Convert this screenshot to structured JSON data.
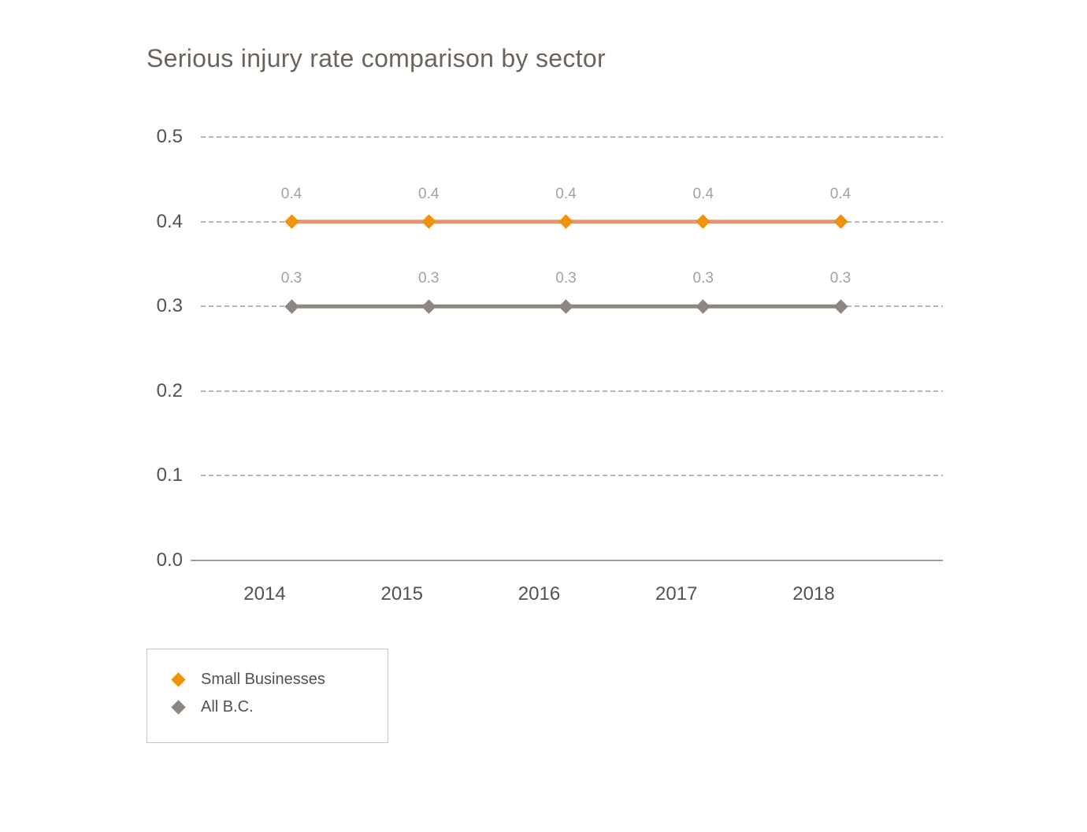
{
  "page": {
    "background": "#ffffff"
  },
  "chart": {
    "title": "Serious injury rate comparison by sector"
  },
  "chart_data": {
    "type": "line",
    "title": "Serious injury rate comparison by sector",
    "categories": [
      "2014",
      "2015",
      "2016",
      "2017",
      "2018"
    ],
    "series": [
      {
        "name": "Small Businesses",
        "values": [
          0.4,
          0.4,
          0.4,
          0.4,
          0.4
        ],
        "point_labels": [
          "0.4",
          "0.4",
          "0.4",
          "0.4",
          "0.4"
        ],
        "marker": "diamond",
        "marker_color": "#f0920b",
        "line_color": "#f0926b"
      },
      {
        "name": "All B.C.",
        "values": [
          0.3,
          0.3,
          0.3,
          0.3,
          0.3
        ],
        "point_labels": [
          "0.3",
          "0.3",
          "0.3",
          "0.3",
          "0.3"
        ],
        "marker": "diamond",
        "marker_color": "#8e8780",
        "line_color": "#8e8880"
      }
    ],
    "xlabel": "",
    "ylabel": "",
    "ylim": [
      0.0,
      0.5
    ],
    "yticks": [
      0.5,
      0.4,
      0.3,
      0.2,
      0.1,
      0.0
    ],
    "ytick_labels": [
      "0.5",
      "0.4",
      "0.3",
      "0.2",
      "0.1",
      "0.0"
    ],
    "grid": "horizontal-dashed",
    "legend_position": "bottom-left",
    "point_labels_visible": true
  },
  "legend": {
    "items": [
      {
        "label": "Small Businesses",
        "color": "#f0920b"
      },
      {
        "label": "All B.C.",
        "color": "#8e8780"
      }
    ]
  },
  "colors": {
    "title_text": "#6c6359",
    "axis_tick_text": "#57514b",
    "point_label_text": "#a5a19c",
    "gridline": "#bab6b1",
    "axis_line": "#a29d97",
    "legend_border": "#c7c4c1",
    "legend_text": "#565049",
    "background": "#ffffff"
  }
}
